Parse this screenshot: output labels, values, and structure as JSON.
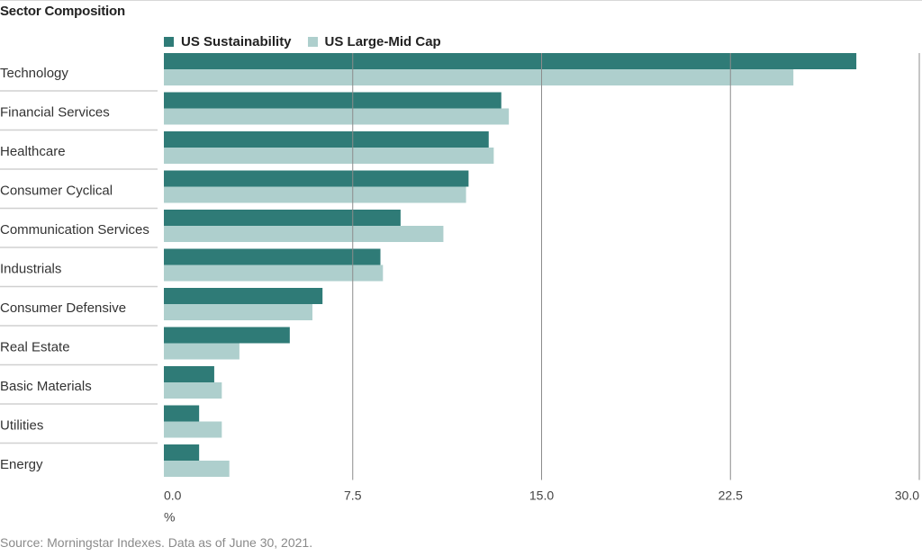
{
  "title": "Sector Composition",
  "source": "Source: Morningstar Indexes. Data as of June 30, 2021.",
  "colors": {
    "series1": "#2f7b77",
    "series2": "#aecfcd",
    "grid": "#8c8c8c",
    "separator": "#d0d0d0"
  },
  "chart_data": {
    "type": "bar",
    "orientation": "horizontal",
    "title": "Sector Composition",
    "xlabel": "%",
    "xlim": [
      0,
      30
    ],
    "xticks": [
      0,
      7.5,
      15,
      22.5,
      30
    ],
    "xtick_labels": [
      "0.0",
      "7.5",
      "15.0",
      "22.5",
      "30.0"
    ],
    "categories": [
      "Technology",
      "Financial Services",
      "Healthcare",
      "Consumer Cyclical",
      "Communication Services",
      "Industrials",
      "Consumer Defensive",
      "Real Estate",
      "Basic Materials",
      "Utilities",
      "Energy"
    ],
    "series": [
      {
        "name": "US Sustainability",
        "values": [
          27.5,
          13.4,
          12.9,
          12.1,
          9.4,
          8.6,
          6.3,
          5.0,
          2.0,
          1.4,
          1.4
        ]
      },
      {
        "name": "US Large-Mid Cap",
        "values": [
          25.0,
          13.7,
          13.1,
          12.0,
          11.1,
          8.7,
          5.9,
          3.0,
          2.3,
          2.3,
          2.6
        ]
      }
    ],
    "legend": "top-left",
    "grid": true
  }
}
